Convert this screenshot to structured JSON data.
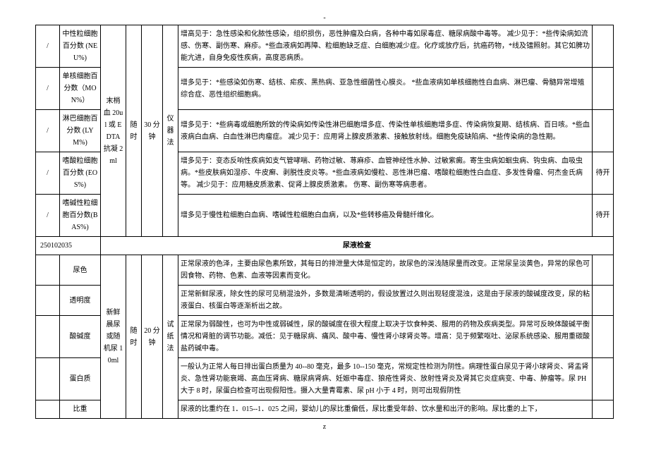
{
  "top_marker": "-",
  "footer_marker": "z",
  "blood": {
    "sample": "末梢血 20ul 或 EDTA 抗凝 2ml",
    "timing": "随时",
    "duration": "30 分钟",
    "method": "仪器法",
    "rows": [
      {
        "c0": "/",
        "name": "中性粒细胞百分数 (NEU%)",
        "desc": "增高见于：急性感染和化脓性感染，组织损伤，恶性肿瘤及白病，各种中毒如尿毒症、糖尿病酸中毒等。\n减少见于：*些传染病如流感、伤寒、副伤寒、麻疹。*些血液病如再障、粒细胞缺乏症、白细胞减少症。化疗或放疗后，抗癌药物，*线及镭照射。其它如脾功能亢进，自身免疫性疾病，高度恶病质。",
        "c7": ""
      },
      {
        "c0": "/",
        "name": "单核细胞百分数（MON%）",
        "desc": "增多见于：*些感染如伤寒、结核、疟疾、黑热病、亚急性细菌性心膜炎。 *些血液病如单核细胞性白血病、淋巴瘤、骨髓异常增殖综合症、恶性组织细胞病。",
        "c7": ""
      },
      {
        "c0": "/",
        "name": "淋巴细胞百分数 (LYM%)",
        "desc": "增多见于：*些病毒或细胞所致的传染病如传染性淋巴细胞增多症、传染性单核细胞增多症、传染病恢复期、结核病、百日咳。*些血液病白血病、白血性淋巴肉瘤症。\n减少见于：应用肾上腺皮质激素、接触放射线。细胞免疫缺陷病、*些传染病的急性期。",
        "c7": ""
      },
      {
        "c0": "/",
        "name": "嗜酸粒细胞百分数 (EOS%)",
        "desc": "增多见于：变态反响性疾病如支气管哮喘、药物过敏、荨麻疹、血管神经性水肿、过敏紫癜。寄生虫病如蛔虫病、钩虫病、血吸虫病。*些皮肤病如湿疹、牛皮癣、剥脱性皮炎等。*些血液病如慢粒、恶性淋巴瘤、嗜酸粒细胞性白血症、多发性骨瘤、何杰金氏病等。\n减少见于：应用糖皮质激素、促肾上腺皮质激素。 伤寒、副伤寒等病患者。",
        "c7": "待开"
      },
      {
        "c0": "/",
        "name": "嗜碱性粒细胞百分数(BAS%)",
        "desc": "增多见于慢性粒细胞白血病、嗜碱性粒细胞白血病，以及*些转移癌及骨髓纤维化。",
        "c7": "待开"
      }
    ]
  },
  "urine_code": "250102035",
  "urine_section_title": "尿液检查",
  "urine": {
    "sample": "新鲜晨尿或随机尿 10ml",
    "timing": "随时",
    "duration": "20 分钟",
    "method": "试纸法",
    "rows": [
      {
        "c0": "",
        "name": "尿色",
        "desc": "正常尿液的色泽，主要由尿色素所致，其每日的排泄量大体是恒定的，故尿色的深浅随尿量而改变。正常尿呈淡黄色，异常的尿色可因食物、药物、色素、血液等因素而变化。",
        "c7": ""
      },
      {
        "c0": "",
        "name": "透明度",
        "desc": "正常新鲜尿液，除女性的尿可见稍混浊外，多数是清晰透明的，假设放置过久则出现轻度混浊，这是由于尿液的酸碱度改变，尿的粘液蛋白、核蛋白等逐渐析出之故。",
        "c7": ""
      },
      {
        "c0": "",
        "name": "酸碱度",
        "desc": "正常尿为弱酸性，也可为中性或弱碱性，尿的酸碱度在很大程度上取决于饮食种类、服用的药物及疾病类型。异常可反映体酸碱平衡情况和肾脏的调节功能。减低：见于糖尿病、痛风、酸中毒、慢性肾小球肾炎等。增高：见于频繁呕吐、泌尿系统感染、服用重碳酸盐药碱中毒。",
        "c7": ""
      },
      {
        "c0": "",
        "name": "蛋白质",
        "desc": "一般认为正常人每日排出蛋白质量为 40--80 毫克，最多 10--150 毫克，常规定性检测为阴性。病理性蛋白尿见于肾小球肾炎、肾盂肾炎、急性肾功能衰竭、高血压肾病、糖尿病肾病、妊娠中毒症、狼疮性肾炎、放射性肾炎及肾其它炎症病变、中毒、肿瘤等。尿 PH 大于 8 时，尿蛋白检查可出现假阳性。摄入大量青霉素、尿 pH 小于 4 时，则可出现假阴性",
        "c7": ""
      },
      {
        "c0": "",
        "name": "比重",
        "desc": "尿液的比重约在 1．015--1．025 之间，婴幼儿的尿比重偏低，尿比重受年龄、饮水量和出汗的影响。尿比重的上下，",
        "c7": ""
      }
    ]
  }
}
